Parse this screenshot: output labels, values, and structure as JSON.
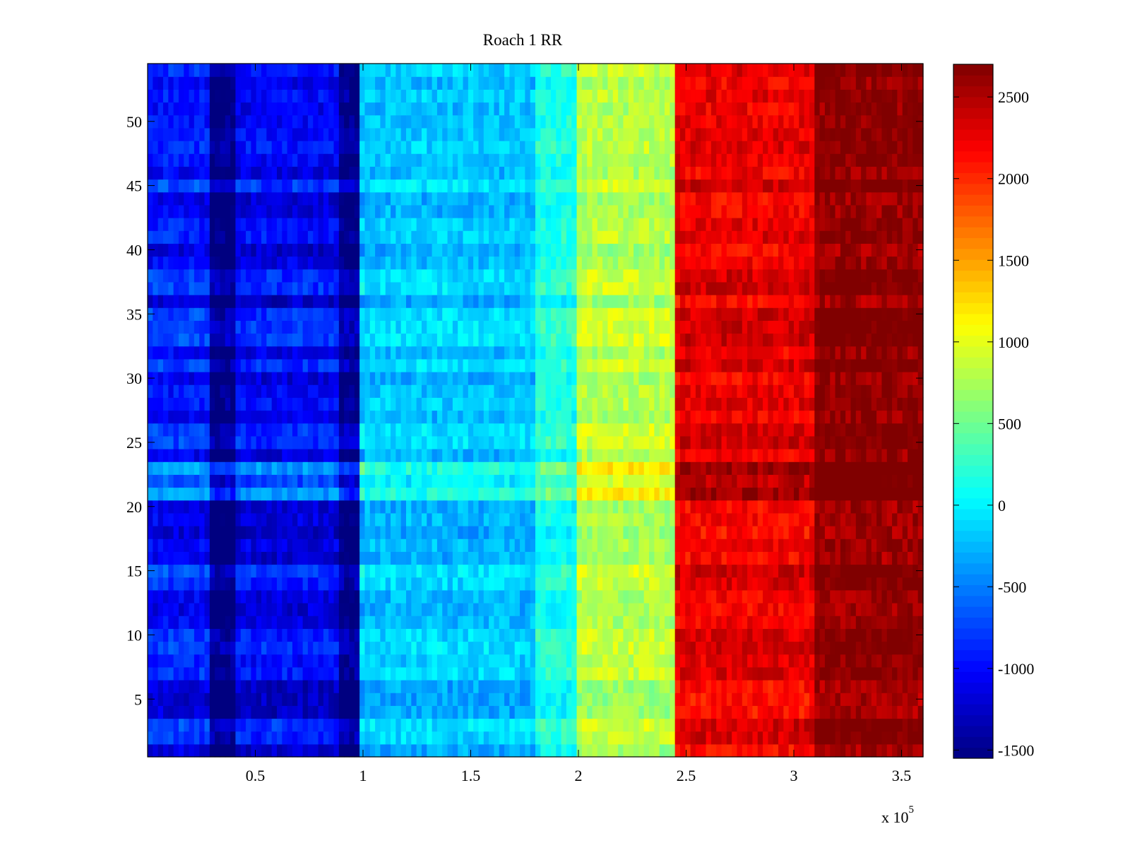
{
  "chart_data": {
    "type": "heatmap",
    "title": "Roach 1 RR",
    "xlabel": "",
    "ylabel": "",
    "x_exponent_label": "x 10",
    "x_exponent_power": "5",
    "xlim": [
      0,
      360000
    ],
    "ylim": [
      0.5,
      54.5
    ],
    "x_ticks": [
      50000,
      100000,
      150000,
      200000,
      250000,
      300000,
      350000
    ],
    "x_tick_labels": [
      "0.5",
      "1",
      "1.5",
      "2",
      "2.5",
      "3",
      "3.5"
    ],
    "y_ticks": [
      5,
      10,
      15,
      20,
      25,
      30,
      35,
      40,
      45,
      50
    ],
    "y_tick_labels": [
      "5",
      "10",
      "15",
      "20",
      "25",
      "30",
      "35",
      "40",
      "45",
      "50"
    ],
    "rows": 54,
    "colormap": "jet",
    "clim": [
      -1550,
      2700
    ],
    "colorbar_ticks": [
      -1500,
      -1000,
      -500,
      0,
      500,
      1000,
      1500,
      2000,
      2500
    ],
    "colorbar_tick_labels": [
      "-1500",
      "-1000",
      "-500",
      "0",
      "500",
      "1000",
      "1500",
      "2000",
      "2500"
    ],
    "bands": [
      {
        "x_range": [
          0,
          28000
        ],
        "approx_value": -950
      },
      {
        "x_range": [
          28000,
          40000
        ],
        "approx_value": -1550
      },
      {
        "x_range": [
          40000,
          88000
        ],
        "approx_value": -1050
      },
      {
        "x_range": [
          88000,
          98000
        ],
        "approx_value": -1500
      },
      {
        "x_range": [
          98000,
          180000
        ],
        "approx_value": -200
      },
      {
        "x_range": [
          180000,
          200000
        ],
        "approx_value": 150
      },
      {
        "x_range": [
          200000,
          244000
        ],
        "approx_value": 800
      },
      {
        "x_range": [
          244000,
          310000
        ],
        "approx_value": 2250
      },
      {
        "x_range": [
          310000,
          360000
        ],
        "approx_value": 2650
      }
    ],
    "row_profile_note": "",
    "grid": false,
    "legend": "colorbar-right"
  }
}
